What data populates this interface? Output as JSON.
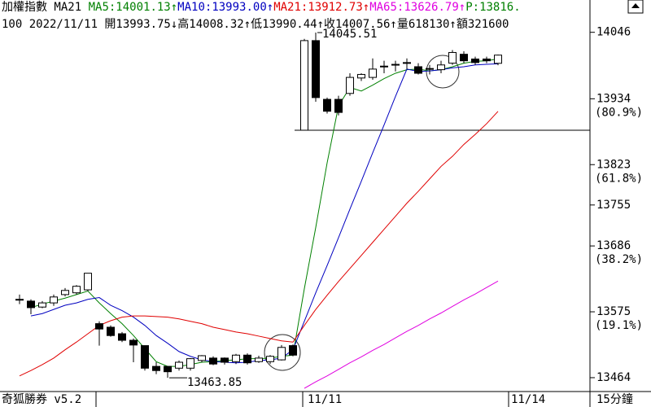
{
  "header": {
    "title": "加權指數 MA21",
    "p_text": "P:13816.",
    "p_color": "#008000",
    "line2": "100 2022/11/11 開13993.75↓高14008.32↑低13990.44↑收14007.56↑量618130↑額321600"
  },
  "footer": {
    "left": "奇狐勝券 v5.2",
    "right": "15分鐘"
  },
  "chart_data": {
    "type": "candlestick",
    "categories": [
      null,
      null,
      null,
      null,
      null,
      null,
      null,
      null,
      null,
      null,
      null,
      null,
      null,
      null,
      null,
      null,
      null,
      null,
      null,
      null,
      null,
      null,
      null,
      null,
      null,
      "11/11",
      null,
      null,
      null,
      null,
      null,
      null,
      null,
      null,
      null,
      null,
      null,
      null,
      null,
      null,
      null,
      null,
      null
    ],
    "next_label": "11/14",
    "open": [
      13596,
      13593,
      13583,
      13590,
      13604,
      13607,
      13612,
      13555,
      13549,
      13538,
      13527,
      13518,
      13483,
      13483,
      13480,
      13480,
      13493,
      13497,
      13497,
      13491,
      13502,
      13491,
      13491,
      13494,
      13518,
      13881,
      14032,
      13933,
      13933,
      13943,
      13969,
      13970,
      13988,
      13991,
      13994,
      13988,
      13984,
      13983,
      13994,
      14009,
      14001,
      14001,
      13993.75
    ],
    "high": [
      13604,
      13596,
      13593,
      13604,
      13615,
      13620,
      13640,
      13559,
      13552,
      13541,
      13530,
      13518,
      13490,
      13483,
      13493,
      13497,
      13502,
      13500,
      13498,
      13504,
      13505,
      13501,
      13502,
      13519,
      13520,
      14035,
      14045.51,
      13936,
      13939,
      13977,
      13977,
      14002,
      13998,
      13998,
      14002,
      13994,
      13991,
      13998,
      14016,
      14014,
      14005,
      14005,
      14008.32
    ],
    "low": [
      13588,
      13571,
      13581,
      13585,
      13601,
      13604,
      13610,
      13518,
      13533,
      13524,
      13490,
      13476,
      13470,
      13463.85,
      13476,
      13476,
      13490,
      13485,
      13486,
      13487,
      13486,
      13489,
      13487,
      13493,
      13500,
      13881,
      13929,
      13909,
      13906,
      13939,
      13964,
      13966,
      13977,
      13980,
      13984,
      13975,
      13975,
      13977,
      13991,
      13994,
      13991,
      13994,
      13990.44
    ],
    "close": [
      13595,
      13582,
      13590,
      13600,
      13611,
      13618,
      13640,
      13546,
      13535,
      13527,
      13519,
      13480,
      13476,
      13474,
      13490,
      13496,
      13501,
      13487,
      13490,
      13502,
      13489,
      13497,
      13500,
      13515,
      13502,
      14032,
      13936,
      13913,
      13911,
      13970,
      13975,
      13984,
      13989,
      13992,
      13995,
      13977,
      13985,
      13991,
      14012,
      13998,
      13995,
      13998,
      14007.56
    ],
    "up_color": "#ffffff",
    "down_color": "#000000",
    "series": [
      {
        "name": "MA5:14001.13↑",
        "color": "#008000",
        "values": [
          null,
          13582,
          13588,
          13593,
          13598,
          13604,
          13610,
          13590,
          13572,
          13555,
          13535,
          13513,
          13491,
          13483,
          13483,
          13486,
          13490,
          13491,
          13493,
          13494,
          13496,
          13496,
          13497,
          13500,
          13502,
          13614,
          13717,
          13826,
          13922,
          13953,
          13947,
          13957,
          13968,
          13977,
          13983,
          13984,
          13981,
          13983,
          13988,
          13994,
          13997,
          13998,
          14001.13
        ]
      },
      {
        "name": "MA10:13993.00↑",
        "color": "#0000c0",
        "values": [
          null,
          13568,
          13572,
          13579,
          13586,
          13590,
          13596,
          13599,
          13586,
          13577,
          13566,
          13552,
          13535,
          13522,
          13508,
          13500,
          13494,
          13491,
          13490,
          13489,
          13490,
          13493,
          13494,
          13497,
          13511,
          13559,
          13607,
          13653,
          13700,
          13748,
          13795,
          13843,
          13890,
          13938,
          13984,
          13980,
          13981,
          13983,
          13986,
          13988,
          13991,
          13992,
          13993.0
        ]
      },
      {
        "name": "MA21:13912.73↑",
        "color": "#e00000",
        "values": [
          13467,
          13476,
          13486,
          13497,
          13511,
          13524,
          13538,
          13552,
          13560,
          13566,
          13568,
          13568,
          13567,
          13566,
          13563,
          13559,
          13555,
          13549,
          13545,
          13541,
          13538,
          13534,
          13530,
          13526,
          13524,
          13552,
          13579,
          13603,
          13626,
          13648,
          13670,
          13692,
          13714,
          13736,
          13758,
          13778,
          13799,
          13820,
          13837,
          13857,
          13874,
          13892,
          13912.73
        ]
      },
      {
        "name": "MA65:13626.79↑",
        "color": "#e000e0",
        "values": [
          null,
          null,
          null,
          null,
          null,
          null,
          null,
          null,
          null,
          null,
          null,
          null,
          null,
          null,
          null,
          null,
          null,
          null,
          null,
          null,
          null,
          null,
          null,
          null,
          null,
          13446,
          13457,
          13467,
          13478,
          13489,
          13499,
          13510,
          13520,
          13531,
          13542,
          13552,
          13563,
          13573,
          13584,
          13595,
          13605,
          13616,
          13626.79
        ]
      }
    ],
    "ylim": [
      13442,
      14073
    ],
    "yticks": [
      14046,
      13934,
      13823,
      13755,
      13686,
      13575,
      13464
    ],
    "ratio_labels": [
      {
        "value": 13934,
        "label": "(80.9%)"
      },
      {
        "value": 13823,
        "label": "(61.8%)"
      },
      {
        "value": 13686,
        "label": "(38.2%)"
      },
      {
        "value": 13575,
        "label": "(19.1%)"
      }
    ],
    "high_annotation": 14045.51,
    "low_annotation": 13463.85
  }
}
